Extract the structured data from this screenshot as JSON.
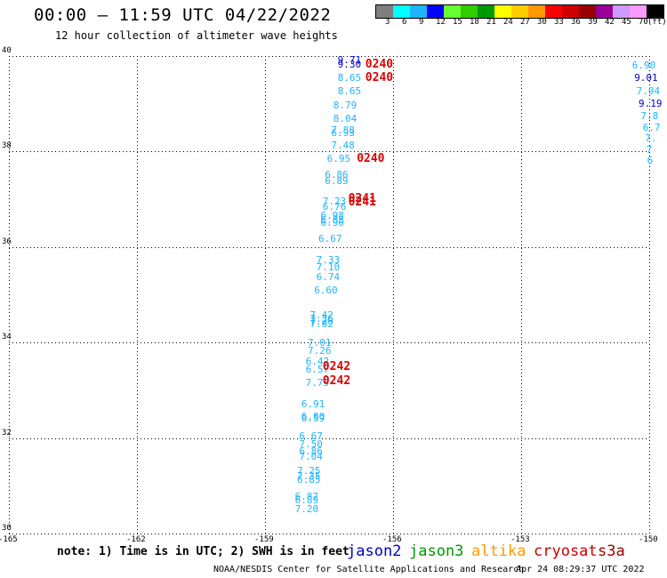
{
  "title": "00:00 – 11:59 UTC 04/22/2022",
  "subtitle": "12 hour collection of altimeter wave heights",
  "colorbar": {
    "colors": [
      "#7f7f7f",
      "#00ffff",
      "#1eb4ff",
      "#0000ff",
      "#66ff33",
      "#33cc00",
      "#009900",
      "#ffff00",
      "#ffcc00",
      "#ff9900",
      "#ff0000",
      "#cc0000",
      "#990000",
      "#990099",
      "#cc99ff",
      "#ff99ff",
      "#000000"
    ],
    "labels": [
      "3",
      "6",
      "9",
      "12",
      "15",
      "18",
      "21",
      "24",
      "27",
      "30",
      "33",
      "36",
      "39",
      "42",
      "45",
      "70",
      "(ft)"
    ]
  },
  "axes": {
    "x_labels": [
      "-165",
      "-162",
      "-159",
      "-156",
      "-153",
      "-150"
    ],
    "y_labels": [
      "30",
      "32",
      "34",
      "36",
      "38",
      "40"
    ],
    "xlim": [
      -165,
      -150
    ],
    "ylim": [
      30,
      40
    ]
  },
  "points": [
    {
      "t": "9.71",
      "c": "#0000cc",
      "lon": -157.3,
      "lat": 39.92
    },
    {
      "t": "9.30",
      "c": "#0000cc",
      "lon": -157.3,
      "lat": 39.82
    },
    {
      "t": "8.65",
      "c": "#1eb4ff",
      "lon": -157.3,
      "lat": 39.55
    },
    {
      "t": "8.65",
      "c": "#1eb4ff",
      "lon": -157.3,
      "lat": 39.27
    },
    {
      "t": "8.79",
      "c": "#1eb4ff",
      "lon": -157.4,
      "lat": 38.97
    },
    {
      "t": "8.04",
      "c": "#1eb4ff",
      "lon": -157.4,
      "lat": 38.69
    },
    {
      "t": "7.88",
      "c": "#1eb4ff",
      "lon": -157.45,
      "lat": 38.45
    },
    {
      "t": "6.93",
      "c": "#1eb4ff",
      "lon": -157.45,
      "lat": 38.38
    },
    {
      "t": "7.48",
      "c": "#1eb4ff",
      "lon": -157.45,
      "lat": 38.12
    },
    {
      "t": "6.95",
      "c": "#1eb4ff",
      "lon": -157.55,
      "lat": 37.84
    },
    {
      "t": "6.86",
      "c": "#1eb4ff",
      "lon": -157.6,
      "lat": 37.51
    },
    {
      "t": "6.89",
      "c": "#1eb4ff",
      "lon": -157.6,
      "lat": 37.39
    },
    {
      "t": "7.23",
      "c": "#1eb4ff",
      "lon": -157.65,
      "lat": 36.96
    },
    {
      "t": "6.76",
      "c": "#1eb4ff",
      "lon": -157.65,
      "lat": 36.84
    },
    {
      "t": "6.98",
      "c": "#1eb4ff",
      "lon": -157.7,
      "lat": 36.65
    },
    {
      "t": "6.88",
      "c": "#1eb4ff",
      "lon": -157.7,
      "lat": 36.56
    },
    {
      "t": "6.90",
      "c": "#1eb4ff",
      "lon": -157.7,
      "lat": 36.5
    },
    {
      "t": "6.67",
      "c": "#1eb4ff",
      "lon": -157.75,
      "lat": 36.18
    },
    {
      "t": "7.33",
      "c": "#1eb4ff",
      "lon": -157.8,
      "lat": 35.72
    },
    {
      "t": "7.10",
      "c": "#1eb4ff",
      "lon": -157.8,
      "lat": 35.57
    },
    {
      "t": "6.74",
      "c": "#1eb4ff",
      "lon": -157.8,
      "lat": 35.38
    },
    {
      "t": "6.60",
      "c": "#1eb4ff",
      "lon": -157.85,
      "lat": 35.09
    },
    {
      "t": "7.42",
      "c": "#1eb4ff",
      "lon": -157.95,
      "lat": 34.57
    },
    {
      "t": "7.36",
      "c": "#1eb4ff",
      "lon": -157.95,
      "lat": 34.5
    },
    {
      "t": "7.26",
      "c": "#1eb4ff",
      "lon": -157.95,
      "lat": 34.44
    },
    {
      "t": "7.02",
      "c": "#1eb4ff",
      "lon": -157.95,
      "lat": 34.38
    },
    {
      "t": "7.01",
      "c": "#1eb4ff",
      "lon": -158.0,
      "lat": 33.99
    },
    {
      "t": "7.26",
      "c": "#1eb4ff",
      "lon": -158.0,
      "lat": 33.83
    },
    {
      "t": "6.42",
      "c": "#1eb4ff",
      "lon": -158.05,
      "lat": 33.6
    },
    {
      "t": "6.57",
      "c": "#1eb4ff",
      "lon": -158.05,
      "lat": 33.44
    },
    {
      "t": "7.75",
      "c": "#1eb4ff",
      "lon": -158.05,
      "lat": 33.15
    },
    {
      "t": "6.91",
      "c": "#1eb4ff",
      "lon": -158.15,
      "lat": 32.71
    },
    {
      "t": "6.80",
      "c": "#1eb4ff",
      "lon": -158.15,
      "lat": 32.45
    },
    {
      "t": "6.59",
      "c": "#1eb4ff",
      "lon": -158.15,
      "lat": 32.41
    },
    {
      "t": "6.67",
      "c": "#1eb4ff",
      "lon": -158.2,
      "lat": 32.03
    },
    {
      "t": "7.50",
      "c": "#1eb4ff",
      "lon": -158.2,
      "lat": 31.87
    },
    {
      "t": "6.86",
      "c": "#1eb4ff",
      "lon": -158.2,
      "lat": 31.72
    },
    {
      "t": "7.04",
      "c": "#1eb4ff",
      "lon": -158.2,
      "lat": 31.61
    },
    {
      "t": "7.25",
      "c": "#1eb4ff",
      "lon": -158.25,
      "lat": 31.32
    },
    {
      "t": "7.35",
      "c": "#1eb4ff",
      "lon": -158.25,
      "lat": 31.2
    },
    {
      "t": "6.85",
      "c": "#1eb4ff",
      "lon": -158.25,
      "lat": 31.13
    },
    {
      "t": "6.87",
      "c": "#1eb4ff",
      "lon": -158.3,
      "lat": 30.78
    },
    {
      "t": "6.89",
      "c": "#1eb4ff",
      "lon": -158.3,
      "lat": 30.7
    },
    {
      "t": "7.20",
      "c": "#1eb4ff",
      "lon": -158.3,
      "lat": 30.52
    },
    {
      "t": "6.90",
      "c": "#1eb4ff",
      "lon": -150.4,
      "lat": 39.8
    },
    {
      "t": "9.01",
      "c": "#0000cc",
      "lon": -150.35,
      "lat": 39.55
    },
    {
      "t": "7.94",
      "c": "#1eb4ff",
      "lon": -150.3,
      "lat": 39.27
    },
    {
      "t": "9.19",
      "c": "#0000cc",
      "lon": -150.25,
      "lat": 39.01
    },
    {
      "t": "7.8",
      "c": "#1eb4ff",
      "lon": -150.2,
      "lat": 38.75
    },
    {
      "t": "6.7",
      "c": "#1eb4ff",
      "lon": -150.15,
      "lat": 38.5
    },
    {
      "t": "7.",
      "c": "#1eb4ff",
      "lon": -150.1,
      "lat": 38.27
    },
    {
      "t": "7",
      "c": "#1eb4ff",
      "lon": -150.07,
      "lat": 38.04
    },
    {
      "t": "6",
      "c": "#1eb4ff",
      "lon": -150.05,
      "lat": 37.82
    }
  ],
  "times": [
    {
      "t": "0240",
      "lon": -156.65,
      "lat": 39.82
    },
    {
      "t": "0240",
      "lon": -156.65,
      "lat": 39.55
    },
    {
      "t": "0240",
      "lon": -156.85,
      "lat": 37.84
    },
    {
      "t": "0241",
      "lon": -157.05,
      "lat": 37.02
    },
    {
      "t": "0241",
      "lon": -157.05,
      "lat": 36.93
    },
    {
      "t": "0242",
      "lon": -157.65,
      "lat": 33.49
    },
    {
      "t": "0242",
      "lon": -157.65,
      "lat": 33.2
    }
  ],
  "note": "note: 1) Time is in UTC; 2) SWH is in feet",
  "satellites": [
    {
      "name": "jason2",
      "color": "#0000cc"
    },
    {
      "name": "jason3",
      "color": "#009900"
    },
    {
      "name": "altika",
      "color": "#ff9900"
    },
    {
      "name": "cryosat",
      "color": "#cc0000"
    },
    {
      "name": "s3a",
      "color": "#990000"
    }
  ],
  "credit": "NOAA/NESDIS Center for Satellite Applications and Research",
  "timestamp": "Apr 24 08:29:37 UTC 2022"
}
